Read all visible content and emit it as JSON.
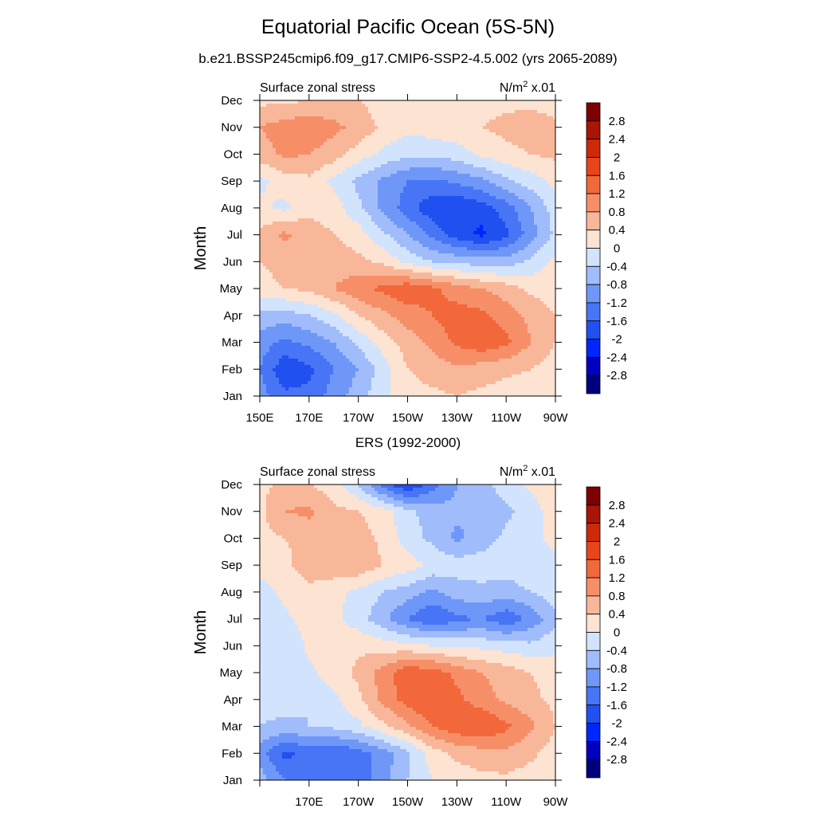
{
  "page": {
    "title": "Equatorial Pacific Ocean (5S-5N)",
    "subtitle": "b.e21.BSSP245cmip6.f09_g17.CMIP6-SSP2-4.5.002 (yrs 2065-2089)",
    "second_panel_title": "ERS (1992-2000)"
  },
  "colors": {
    "levels": [
      "#00007f",
      "#0000bf",
      "#0026ff",
      "#2050f0",
      "#4775f5",
      "#6e97f8",
      "#a0bcfa",
      "#d2e3fd",
      "#fde3d2",
      "#f9b79a",
      "#f68f68",
      "#f2683a",
      "#e8461a",
      "#cc2a0b",
      "#a91506",
      "#7f0000"
    ]
  },
  "chart_data": [
    {
      "type": "heatmap",
      "left_label": "Surface zonal stress",
      "right_label": "N/m",
      "right_label_sup": "2",
      "right_label_suffix": " x.01",
      "ylabel": "Month",
      "xlabel": "",
      "x_ticks": [
        "150E",
        "170E",
        "170W",
        "150W",
        "130W",
        "110W",
        "90W"
      ],
      "x_range_deg_east": [
        150,
        270
      ],
      "y_ticks": [
        "Jan",
        "Feb",
        "Mar",
        "Apr",
        "May",
        "Jun",
        "Jul",
        "Aug",
        "Sep",
        "Oct",
        "Nov",
        "Dec"
      ],
      "colorbar_labels": [
        "2.8",
        "2.4",
        "2",
        "1.6",
        "1.2",
        "0.8",
        "0.4",
        "0",
        "-0.4",
        "-0.8",
        "-1.2",
        "-1.6",
        "-2",
        "-2.4",
        "-2.8"
      ],
      "contour_levels": [
        -2.8,
        -2.4,
        -2,
        -1.6,
        -1.2,
        -0.8,
        -0.4,
        0,
        0.4,
        0.8,
        1.2,
        1.6,
        2,
        2.4,
        2.8
      ],
      "grid": false,
      "lon": [
        150,
        160,
        170,
        180,
        190,
        200,
        210,
        220,
        230,
        240,
        250,
        260,
        270
      ],
      "months": [
        "Jan",
        "Feb",
        "Mar",
        "Apr",
        "May",
        "Jun",
        "Jul",
        "Aug",
        "Sep",
        "Oct",
        "Nov",
        "Dec"
      ],
      "values": [
        [
          -1.0,
          -1.5,
          -1.5,
          -1.0,
          -0.6,
          -0.1,
          0.2,
          0.3,
          0.4,
          0.3,
          0.2,
          0.1,
          0.0
        ],
        [
          -1.2,
          -1.9,
          -1.7,
          -1.2,
          -0.8,
          -0.2,
          0.4,
          0.6,
          0.7,
          0.6,
          0.5,
          0.4,
          0.2
        ],
        [
          -1.0,
          -1.3,
          -1.1,
          -0.8,
          -0.3,
          0.2,
          0.6,
          0.9,
          1.3,
          1.5,
          1.3,
          0.8,
          0.4
        ],
        [
          -0.5,
          -0.6,
          -0.4,
          -0.1,
          0.4,
          0.7,
          1.0,
          1.2,
          1.4,
          1.3,
          1.0,
          0.7,
          0.4
        ],
        [
          0.3,
          0.4,
          0.5,
          0.8,
          1.1,
          1.3,
          1.5,
          1.3,
          1.0,
          0.8,
          0.6,
          0.3,
          0.2
        ],
        [
          0.4,
          0.5,
          0.6,
          0.6,
          0.5,
          0.3,
          -0.1,
          -0.4,
          -0.5,
          -0.6,
          -0.6,
          -0.3,
          0.1
        ],
        [
          0.5,
          0.9,
          0.6,
          0.4,
          0.2,
          -0.3,
          -0.8,
          -1.3,
          -1.8,
          -2.1,
          -1.7,
          -1.0,
          -0.3
        ],
        [
          0.1,
          -0.1,
          0.3,
          0.2,
          -0.3,
          -0.9,
          -1.4,
          -1.9,
          -2.0,
          -1.8,
          -1.4,
          -0.8,
          -0.2
        ],
        [
          -0.1,
          0.2,
          0.3,
          -0.1,
          -0.5,
          -0.9,
          -1.2,
          -1.3,
          -1.1,
          -0.9,
          -0.5,
          -0.2,
          0.1
        ],
        [
          0.6,
          0.9,
          0.8,
          0.6,
          0.2,
          -0.1,
          -0.3,
          -0.3,
          -0.2,
          0.1,
          0.3,
          0.4,
          0.5
        ],
        [
          0.8,
          1.0,
          1.1,
          0.9,
          0.7,
          0.3,
          0.1,
          0.2,
          0.3,
          0.4,
          0.5,
          0.6,
          0.5
        ],
        [
          0.3,
          0.3,
          0.4,
          0.5,
          0.4,
          0.2,
          0.1,
          0.1,
          0.2,
          0.3,
          0.3,
          0.3,
          0.2
        ]
      ]
    },
    {
      "type": "heatmap",
      "left_label": "Surface zonal stress",
      "right_label": "N/m",
      "right_label_sup": "2",
      "right_label_suffix": " x.01",
      "ylabel": "Month",
      "xlabel": "",
      "x_ticks": [
        "",
        "170E",
        "170W",
        "150W",
        "130W",
        "110W",
        "90W"
      ],
      "x_range_deg_east": [
        150,
        270
      ],
      "y_ticks": [
        "Jan",
        "Feb",
        "Mar",
        "Apr",
        "May",
        "Jun",
        "Jul",
        "Aug",
        "Sep",
        "Oct",
        "Nov",
        "Dec"
      ],
      "colorbar_labels": [
        "2.8",
        "2.4",
        "2",
        "1.6",
        "1.2",
        "0.8",
        "0.4",
        "0",
        "-0.4",
        "-0.8",
        "-1.2",
        "-1.6",
        "-2",
        "-2.4",
        "-2.8"
      ],
      "contour_levels": [
        -2.8,
        -2.4,
        -2,
        -1.6,
        -1.2,
        -0.8,
        -0.4,
        0,
        0.4,
        0.8,
        1.2,
        1.6,
        2,
        2.4,
        2.8
      ],
      "grid": false,
      "lon": [
        150,
        160,
        170,
        180,
        190,
        200,
        210,
        220,
        230,
        240,
        250,
        260,
        270
      ],
      "months": [
        "Jan",
        "Feb",
        "Mar",
        "Apr",
        "May",
        "Jun",
        "Jul",
        "Aug",
        "Sep",
        "Oct",
        "Nov",
        "Dec"
      ],
      "values": [
        [
          -0.6,
          -1.2,
          -1.5,
          -1.6,
          -1.4,
          -1.0,
          -0.4,
          0.0,
          0.2,
          0.3,
          0.3,
          0.2,
          0.1
        ],
        [
          -1.0,
          -1.7,
          -1.5,
          -1.6,
          -1.4,
          -1.0,
          -0.5,
          0.2,
          0.5,
          0.6,
          0.7,
          0.5,
          0.2
        ],
        [
          -0.4,
          -0.5,
          -0.4,
          -0.3,
          -0.1,
          0.3,
          0.7,
          1.2,
          1.5,
          1.6,
          1.3,
          0.9,
          0.4
        ],
        [
          -0.3,
          -0.2,
          -0.4,
          -0.1,
          0.3,
          0.9,
          1.4,
          1.6,
          1.3,
          1.0,
          0.7,
          0.5,
          0.3
        ],
        [
          -0.3,
          -0.2,
          -0.1,
          0.2,
          0.5,
          1.0,
          1.5,
          1.4,
          1.1,
          0.8,
          0.6,
          0.4,
          0.2
        ],
        [
          -0.4,
          -0.4,
          0.1,
          0.2,
          0.3,
          0.2,
          0.1,
          0.0,
          -0.1,
          -0.1,
          -0.2,
          -0.3,
          -0.1
        ],
        [
          -0.2,
          -0.1,
          0.2,
          0.1,
          -0.2,
          -0.7,
          -1.2,
          -1.6,
          -1.3,
          -1.2,
          -1.5,
          -1.1,
          -0.5
        ],
        [
          -0.2,
          0.1,
          0.3,
          0.1,
          -0.1,
          -0.4,
          -0.6,
          -0.9,
          -0.6,
          -0.5,
          -0.6,
          -0.4,
          -0.2
        ],
        [
          0.2,
          0.3,
          0.6,
          0.7,
          0.7,
          0.4,
          0.2,
          -0.1,
          -0.2,
          -0.2,
          -0.2,
          -0.1,
          -0.1
        ],
        [
          0.3,
          0.4,
          0.5,
          0.6,
          0.6,
          0.3,
          -0.2,
          -0.5,
          -0.9,
          -0.6,
          -0.3,
          -0.1,
          0.1
        ],
        [
          0.3,
          0.8,
          0.9,
          0.5,
          0.4,
          0.2,
          -0.3,
          -0.6,
          -0.7,
          -0.8,
          -0.5,
          -0.2,
          0.2
        ],
        [
          0.3,
          0.5,
          0.4,
          0.2,
          -0.4,
          -1.4,
          -2.0,
          -1.4,
          -0.8,
          -0.5,
          -0.2,
          0.1,
          0.3
        ]
      ]
    }
  ]
}
